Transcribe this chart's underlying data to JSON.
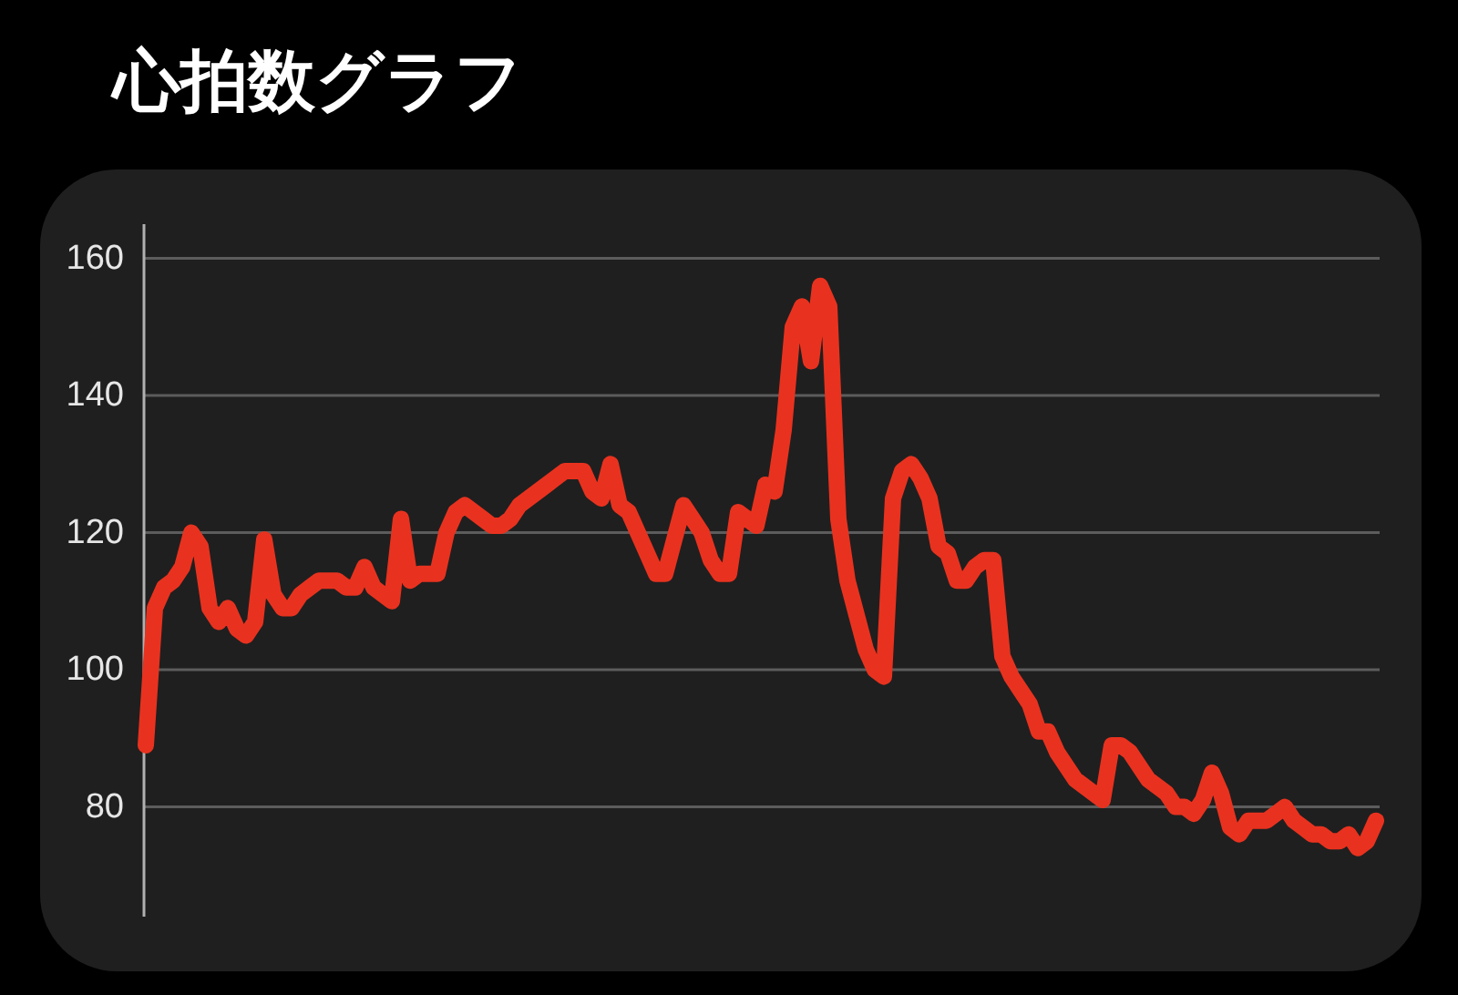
{
  "chart_data": {
    "type": "line",
    "title": "心拍数グラフ",
    "categories": [
      null,
      null,
      null,
      null,
      null,
      null,
      null,
      null,
      null,
      null,
      null,
      null,
      null,
      null,
      null,
      null,
      null,
      null,
      null,
      null,
      null,
      null,
      null,
      null,
      null,
      null,
      null,
      null,
      null,
      null,
      null,
      null,
      null,
      null,
      null,
      null,
      null,
      null,
      null,
      null,
      null,
      null,
      null,
      null,
      null,
      null,
      null,
      null,
      null,
      null,
      null,
      null,
      null,
      null,
      null,
      null,
      null,
      null,
      null,
      null,
      null,
      null,
      null,
      null,
      null,
      null,
      null,
      null,
      null,
      null,
      null,
      null,
      null,
      null,
      null,
      null,
      null,
      null,
      null,
      null,
      null,
      null,
      null,
      null,
      null,
      null,
      null,
      null,
      null,
      null,
      null,
      null,
      null,
      null,
      null,
      null,
      null,
      null,
      null,
      null,
      null,
      null,
      null,
      null,
      null,
      null,
      null,
      null,
      null,
      null,
      null,
      null,
      null,
      null,
      null,
      null,
      null,
      null,
      null,
      null,
      null,
      null,
      null,
      null,
      null,
      null,
      null,
      null,
      null,
      null,
      null,
      null,
      null,
      null,
      null,
      null
    ],
    "values": [
      89,
      109,
      112,
      113,
      115,
      120,
      118,
      109,
      107,
      109,
      106,
      105,
      107,
      119,
      111,
      109,
      109,
      111,
      112,
      113,
      113,
      113,
      112,
      112,
      115,
      112,
      111,
      110,
      122,
      113,
      114,
      114,
      114,
      120,
      123,
      124,
      123,
      122,
      121,
      121,
      122,
      124,
      125,
      126,
      127,
      128,
      129,
      129,
      129,
      126,
      125,
      130,
      124,
      123,
      120,
      117,
      114,
      114,
      119,
      124,
      122,
      120,
      116,
      114,
      114,
      123,
      122,
      121,
      127,
      126,
      135,
      150,
      153,
      145,
      156,
      153,
      122,
      113,
      108,
      103,
      100,
      99,
      125,
      129,
      130,
      128,
      125,
      118,
      117,
      113,
      113,
      115,
      116,
      116,
      102,
      99,
      97,
      95,
      91,
      91,
      88,
      86,
      84,
      83,
      82,
      81,
      89,
      89,
      88,
      86,
      84,
      83,
      82,
      80,
      80,
      79,
      81,
      85,
      82,
      77,
      76,
      78,
      78,
      78,
      79,
      80,
      78,
      77,
      76,
      76,
      75,
      75,
      76,
      74,
      75,
      78
    ],
    "color": "#e8321f",
    "ylim": [
      64,
      165
    ],
    "yticks": [
      80,
      100,
      120,
      140,
      160
    ],
    "grid": "y",
    "tick_labels": "y",
    "marker": "none",
    "line_style": "solid"
  }
}
